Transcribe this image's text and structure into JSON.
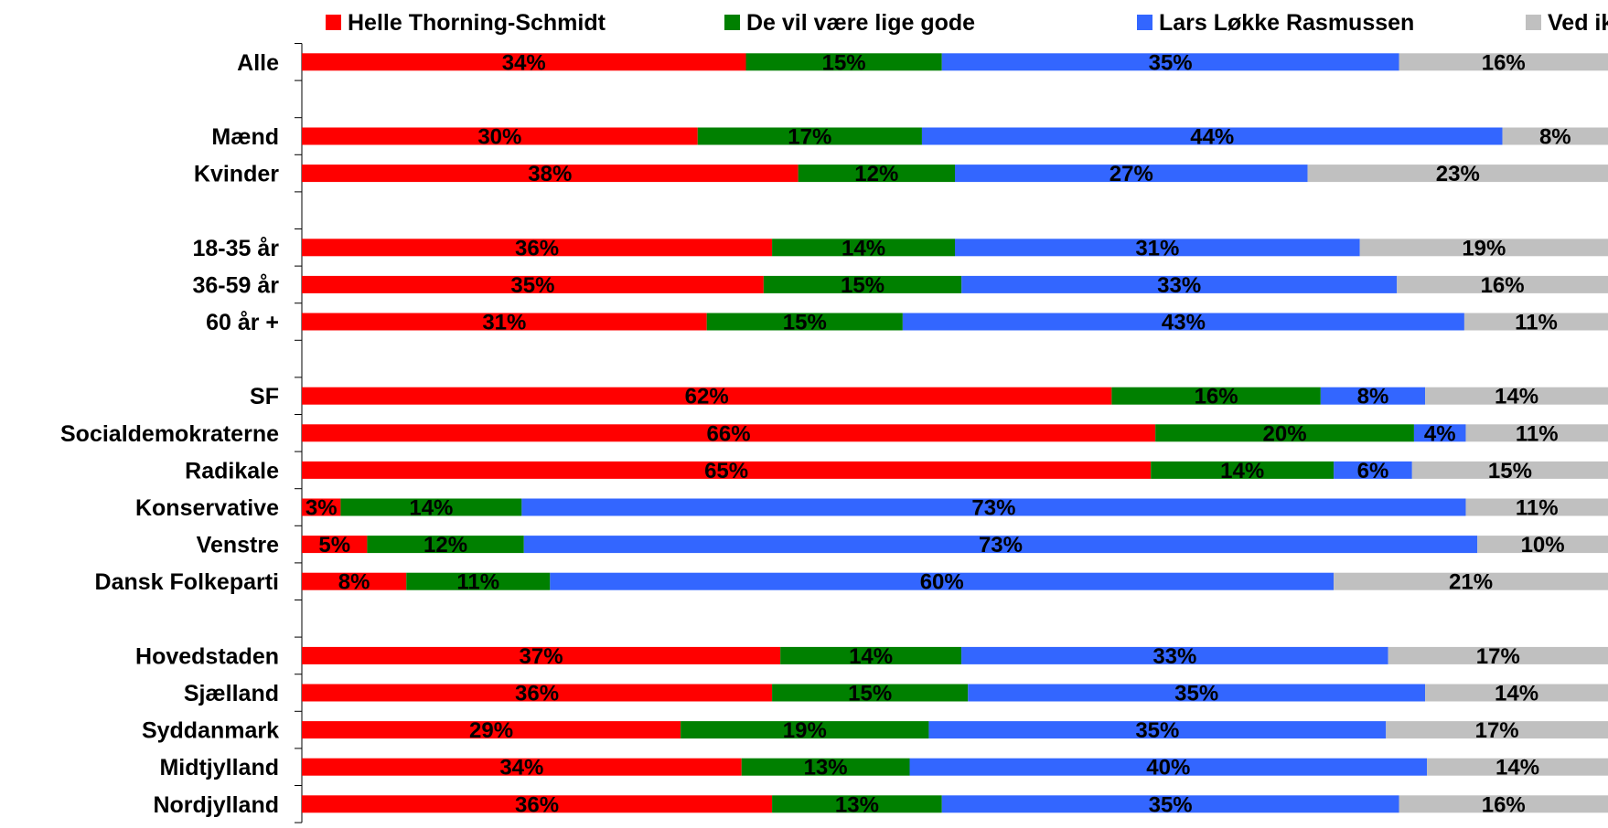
{
  "chart_data": {
    "type": "bar",
    "orientation": "horizontal",
    "stacked": true,
    "percent_stacked": true,
    "legend_position": "top",
    "grid": false,
    "categories": [
      "Alle",
      "",
      "Mænd",
      "Kvinder",
      "",
      "18-35 år",
      "36-59 år",
      "60 år +",
      "",
      "SF",
      "Socialdemokraterne",
      "Radikale",
      "Konservative",
      "Venstre",
      "Dansk Folkeparti",
      "",
      "Hovedstaden",
      "Sjælland",
      "Syddanmark",
      "Midtjylland",
      "Nordjylland"
    ],
    "series": [
      {
        "name": "Helle Thorning-Schmidt",
        "color": "#ff0000",
        "values": [
          34,
          null,
          30,
          38,
          null,
          36,
          35,
          31,
          null,
          62,
          66,
          65,
          3,
          5,
          8,
          null,
          37,
          36,
          29,
          34,
          36
        ],
        "labels": [
          "34%",
          "",
          "30%",
          "38%",
          "",
          "36%",
          "35%",
          "31%",
          "",
          "62%",
          "66%",
          "65%",
          "3%",
          "5%",
          "8%",
          "",
          "37%",
          "36%",
          "29%",
          "34%",
          "36%"
        ]
      },
      {
        "name": "De vil være lige gode",
        "color": "#008000",
        "values": [
          15,
          null,
          17,
          12,
          null,
          14,
          15,
          15,
          null,
          16,
          20,
          14,
          14,
          12,
          11,
          null,
          14,
          15,
          19,
          13,
          13
        ],
        "labels": [
          "15%",
          "",
          "17%",
          "12%",
          "",
          "14%",
          "15%",
          "15%",
          "",
          "16%",
          "20%",
          "14%",
          "14%",
          "12%",
          "11%",
          "",
          "14%",
          "15%",
          "19%",
          "13%",
          "13%"
        ]
      },
      {
        "name": "Lars Løkke Rasmussen",
        "color": "#3366ff",
        "values": [
          35,
          null,
          44,
          27,
          null,
          31,
          33,
          43,
          null,
          8,
          4,
          6,
          73,
          73,
          60,
          null,
          33,
          35,
          35,
          40,
          35
        ],
        "labels": [
          "35%",
          "",
          "44%",
          "27%",
          "",
          "31%",
          "33%",
          "43%",
          "",
          "8%",
          "4%",
          "6%",
          "73%",
          "73%",
          "60%",
          "",
          "33%",
          "35%",
          "35%",
          "40%",
          "35%"
        ]
      },
      {
        "name": "Ved ikke",
        "color": "#c0c0c0",
        "values": [
          16,
          null,
          8,
          23,
          null,
          19,
          16,
          11,
          null,
          14,
          11,
          15,
          11,
          10,
          21,
          null,
          17,
          14,
          17,
          14,
          16
        ],
        "labels": [
          "16%",
          "",
          "8%",
          "23%",
          "",
          "19%",
          "16%",
          "11%",
          "",
          "14%",
          "11%",
          "15%",
          "11%",
          "10%",
          "21%",
          "",
          "17%",
          "14%",
          "17%",
          "14%",
          "16%"
        ]
      }
    ]
  }
}
